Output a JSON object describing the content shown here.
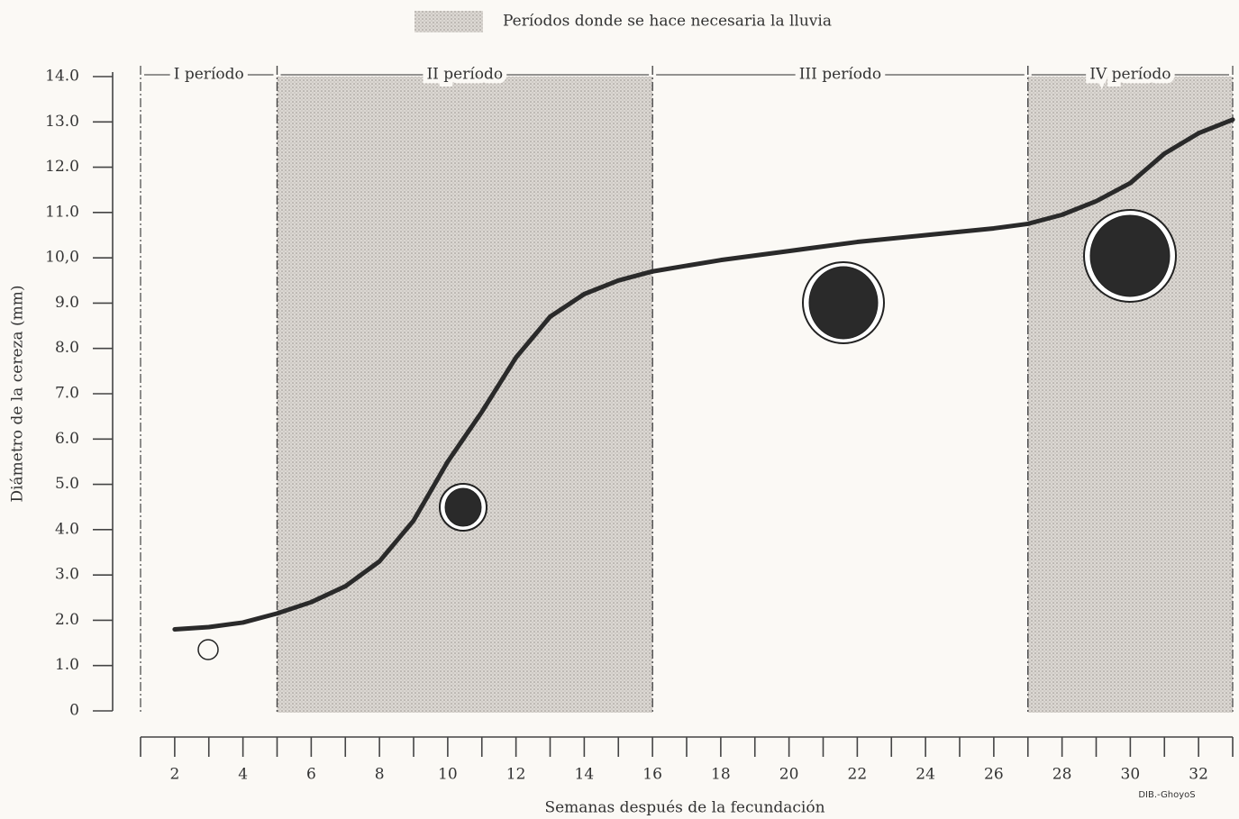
{
  "chart_data": {
    "type": "line",
    "legend_label": "Períodos donde se hace necesaria la lluvia",
    "ylabel": "Diámetro de la cereza (mm)",
    "xlabel": "Semanas después de la fecundación",
    "annotation": "DIB.-GhoyoS",
    "xlim": [
      1,
      33
    ],
    "ylim": [
      0,
      14
    ],
    "xticks": [
      2,
      4,
      6,
      8,
      10,
      12,
      14,
      16,
      18,
      20,
      22,
      24,
      26,
      28,
      30,
      32
    ],
    "xminor_ticks": [
      1,
      3,
      5,
      7,
      9,
      11,
      13,
      15,
      17,
      19,
      21,
      23,
      25,
      27,
      29,
      31,
      33
    ],
    "yticks": [
      0,
      {
        "value": 1,
        "label": "1.0"
      },
      {
        "value": 2,
        "label": "2.0"
      },
      {
        "value": 3,
        "label": "3.0"
      },
      {
        "value": 4,
        "label": "4.0"
      },
      {
        "value": 5,
        "label": "5.0"
      },
      {
        "value": 6,
        "label": "6.0"
      },
      {
        "value": 7,
        "label": "7.0"
      },
      {
        "value": 8,
        "label": "8.0"
      },
      {
        "value": 9,
        "label": "9.0"
      },
      {
        "value": 10,
        "label": "10,0"
      },
      {
        "value": 11,
        "label": "11.0"
      },
      {
        "value": 12,
        "label": "12.0"
      },
      {
        "value": 13,
        "label": "13.0"
      },
      {
        "value": 14,
        "label": "14.0"
      }
    ],
    "periods": [
      {
        "label": "I período",
        "start": 1,
        "end": 5,
        "shaded": false
      },
      {
        "label": "II período",
        "start": 5,
        "end": 16,
        "shaded": true
      },
      {
        "label": "III período",
        "start": 16,
        "end": 27,
        "shaded": false
      },
      {
        "label": "IV período",
        "start": 27,
        "end": 33,
        "shaded": true
      }
    ],
    "color": "#2a2a2a",
    "x": [
      2,
      3,
      4,
      5,
      6,
      7,
      8,
      9,
      10,
      11,
      12,
      13,
      14,
      15,
      16,
      18,
      20,
      22,
      24,
      26,
      27,
      28,
      29,
      30,
      31,
      32,
      33
    ],
    "values": [
      1.8,
      1.85,
      1.95,
      2.15,
      2.4,
      2.75,
      3.3,
      4.2,
      5.5,
      6.6,
      7.8,
      8.7,
      9.2,
      9.5,
      9.7,
      9.95,
      10.15,
      10.35,
      10.5,
      10.65,
      10.75,
      10.95,
      11.25,
      11.65,
      12.3,
      12.75,
      13.05
    ]
  }
}
